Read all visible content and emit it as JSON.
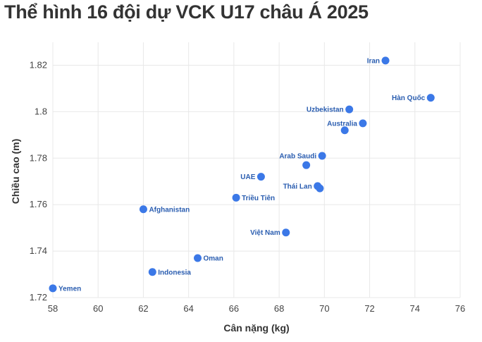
{
  "chart_data": {
    "type": "scatter",
    "title": "Thể hình 16 đội dự VCK U17 châu Á 2025",
    "xlabel": "Cân nặng (kg)",
    "ylabel": "Chiều cao (m)",
    "xlim": [
      58,
      76
    ],
    "ylim": [
      1.72,
      1.83
    ],
    "xticks": [
      "58",
      "60",
      "62",
      "64",
      "66",
      "68",
      "70",
      "72",
      "74",
      "76"
    ],
    "yticks": [
      "1.72",
      "1.74",
      "1.76",
      "1.78",
      "1.8",
      "1.82"
    ],
    "grid": true,
    "color": "#3b78e7",
    "label_color": "#2a5db0",
    "points": [
      {
        "label": "Iran",
        "x": 72.7,
        "y": 1.822,
        "side": "left"
      },
      {
        "label": "Hàn Quốc",
        "x": 74.7,
        "y": 1.806,
        "side": "left"
      },
      {
        "label": "Uzbekistan",
        "x": 71.1,
        "y": 1.801,
        "side": "left"
      },
      {
        "label": "Australia",
        "x": 71.7,
        "y": 1.795,
        "side": "left"
      },
      {
        "label": "",
        "x": 70.9,
        "y": 1.792,
        "side": "none"
      },
      {
        "label": "Arab Saudi",
        "x": 69.9,
        "y": 1.781,
        "side": "left"
      },
      {
        "label": "",
        "x": 69.2,
        "y": 1.777,
        "side": "none"
      },
      {
        "label": "UAE",
        "x": 67.2,
        "y": 1.772,
        "side": "left"
      },
      {
        "label": "Thái Lan",
        "x": 69.7,
        "y": 1.768,
        "side": "left"
      },
      {
        "label": "",
        "x": 69.8,
        "y": 1.767,
        "side": "none"
      },
      {
        "label": "Triều Tiên",
        "x": 66.1,
        "y": 1.763,
        "side": "right"
      },
      {
        "label": "Afghanistan",
        "x": 62.0,
        "y": 1.758,
        "side": "right"
      },
      {
        "label": "Việt Nam",
        "x": 68.3,
        "y": 1.748,
        "side": "left"
      },
      {
        "label": "Oman",
        "x": 64.4,
        "y": 1.737,
        "side": "right"
      },
      {
        "label": "Indonesia",
        "x": 62.4,
        "y": 1.731,
        "side": "right"
      },
      {
        "label": "Yemen",
        "x": 58.0,
        "y": 1.724,
        "side": "right"
      }
    ]
  }
}
